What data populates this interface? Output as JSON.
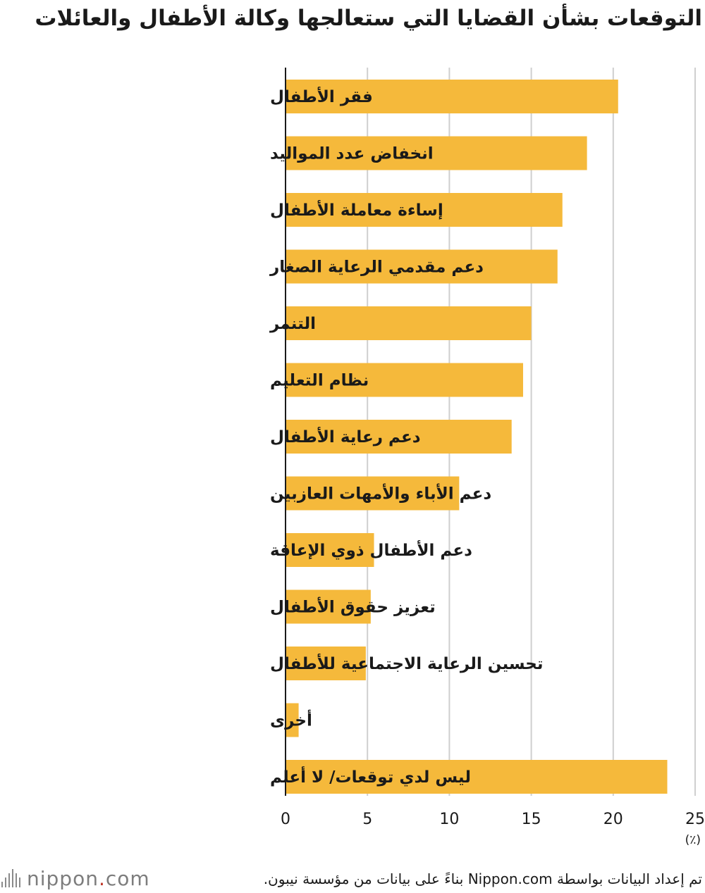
{
  "title": "التوقعات بشأن القضايا التي ستعالجها وكالة الأطفال والعائلات",
  "source": "تم إعداد البيانات بواسطة Nippon.com بناءً على بيانات من مؤسسة نيبون.",
  "logo": {
    "brand": "nippon",
    "dot": ".",
    "tld": "com"
  },
  "colors": {
    "bar": "#F5B93B",
    "grid": "#cfcfcf",
    "axis": "#1a1a1a"
  },
  "chart_data": {
    "type": "bar",
    "orientation": "horizontal",
    "categories": [
      "فقر الأطفال",
      "انخفاض عدد المواليد",
      "إساءة معاملة الأطفال",
      "دعم مقدمي الرعاية الصغار",
      "التنمر",
      "نظام التعليم",
      "دعم رعاية الأطفال",
      "دعم الأباء والأمهات العازبين",
      "دعم الأطفال ذوي الإعاقة",
      "تعزيز حقوق الأطفال",
      "تحسين الرعاية الاجتماعية للأطفال",
      "أخرى",
      "ليس لدي توقعات/ لا أعلم"
    ],
    "values": [
      20.3,
      18.4,
      16.9,
      16.6,
      15.0,
      14.5,
      13.8,
      10.6,
      5.4,
      5.2,
      4.9,
      0.8,
      23.3
    ],
    "xlim": [
      0,
      25
    ],
    "xticks": [
      0,
      5,
      10,
      15,
      20,
      25
    ],
    "tick_labels": [
      "0",
      "5",
      "10",
      "15",
      "20",
      "25"
    ],
    "unit_label": "(٪)",
    "grid": true
  }
}
